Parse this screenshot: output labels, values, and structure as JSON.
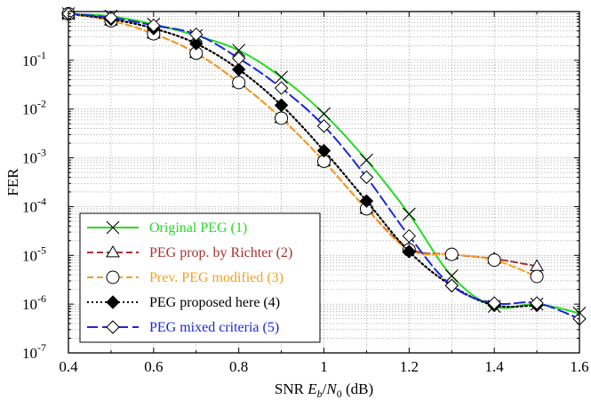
{
  "chart_data": {
    "type": "line",
    "xlabel_parts": {
      "pre": "SNR ",
      "e": "E",
      "b": "b",
      "slash": "/",
      "n": "N",
      "zero": "0",
      "post": " (dB)"
    },
    "ylabel": "FER",
    "xlim": [
      0.4,
      1.6
    ],
    "ylim_log10": [
      -7,
      0
    ],
    "y_scale": "log",
    "grid": true,
    "legend_position": "bottom-left",
    "x_ticks": [
      "0.4",
      "0.6",
      "0.8",
      "1",
      "1.2",
      "1.4",
      "1.6"
    ],
    "y_ticks": [
      {
        "base": "10",
        "exp": "-7"
      },
      {
        "base": "10",
        "exp": "-6"
      },
      {
        "base": "10",
        "exp": "-5"
      },
      {
        "base": "10",
        "exp": "-4"
      },
      {
        "base": "10",
        "exp": "-3"
      },
      {
        "base": "10",
        "exp": "-2"
      },
      {
        "base": "10",
        "exp": "-1"
      }
    ],
    "series": [
      {
        "name": "Original PEG (1)",
        "color": "#22dd22",
        "dash": "solid",
        "marker": "x",
        "x": [
          0.4,
          0.5,
          0.6,
          0.7,
          0.8,
          0.9,
          1.0,
          1.1,
          1.2,
          1.3,
          1.4,
          1.5,
          1.6
        ],
        "y": [
          0.9,
          0.8,
          0.55,
          0.32,
          0.16,
          0.045,
          0.008,
          0.0009,
          7e-05,
          3.8e-06,
          9e-07,
          1e-06,
          6.5e-07
        ]
      },
      {
        "name": "PEG prop. by Richter (2)",
        "color": "#a83232",
        "dash": "dash",
        "marker": "triangle",
        "x": [
          0.4,
          0.5,
          0.6,
          0.7,
          0.8,
          0.9,
          1.0,
          1.1,
          1.2,
          1.3,
          1.4,
          1.5
        ],
        "y": [
          0.9,
          0.65,
          0.35,
          0.14,
          0.035,
          0.0065,
          0.00085,
          9e-05,
          1.4e-05,
          1.05e-05,
          8.5e-06,
          6e-06
        ]
      },
      {
        "name": "Prev. PEG modified (3)",
        "color": "#f5a020",
        "dash": "dash",
        "marker": "circle",
        "x": [
          0.4,
          0.5,
          0.6,
          0.7,
          0.8,
          0.9,
          1.0,
          1.1,
          1.2,
          1.3,
          1.4,
          1.5
        ],
        "y": [
          0.9,
          0.65,
          0.35,
          0.14,
          0.035,
          0.0065,
          0.00085,
          9e-05,
          1.3e-05,
          1.05e-05,
          8e-06,
          3.7e-06
        ]
      },
      {
        "name": "PEG proposed here (4)",
        "color": "#000000",
        "dash": "dot",
        "marker": "diamond-filled",
        "x": [
          0.4,
          0.5,
          0.6,
          0.7,
          0.8,
          0.9,
          1.0,
          1.1,
          1.2,
          1.3,
          1.4,
          1.5
        ],
        "y": [
          0.9,
          0.7,
          0.45,
          0.22,
          0.065,
          0.012,
          0.0014,
          0.00013,
          1.2e-05,
          2.4e-06,
          9.5e-07,
          9.5e-07
        ]
      },
      {
        "name": "PEG mixed criteria (5)",
        "color": "#1a28d8",
        "dash": "longdash",
        "marker": "diamond-open",
        "x": [
          0.4,
          0.5,
          0.6,
          0.7,
          0.8,
          0.9,
          1.0,
          1.1,
          1.2,
          1.3,
          1.4,
          1.5,
          1.6
        ],
        "y": [
          0.9,
          0.75,
          0.52,
          0.34,
          0.11,
          0.027,
          0.0045,
          0.0004,
          2.5e-05,
          2.4e-06,
          1.05e-06,
          1.05e-06,
          5e-07
        ]
      }
    ]
  }
}
